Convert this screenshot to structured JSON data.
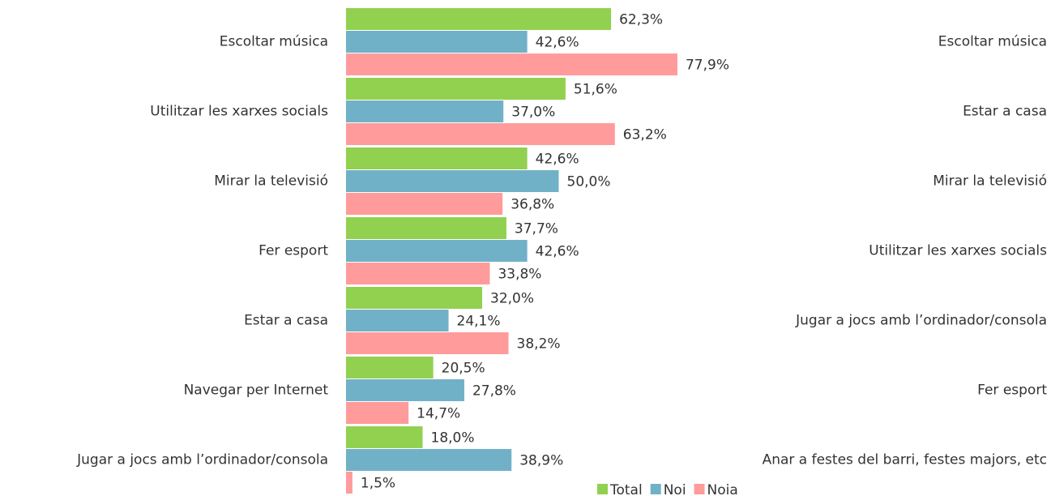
{
  "chart_data": {
    "type": "bar",
    "orientation": "horizontal",
    "categories": [
      "Escoltar música",
      "Utilitzar les xarxes socials",
      "Mirar la televisió",
      "Fer esport",
      "Estar a casa",
      "Navegar per Internet",
      "Jugar a jocs amb l’ordinador/consola"
    ],
    "right_categories": [
      "Escoltar música",
      "Estar a casa",
      "Mirar la televisió",
      "Utilitzar les xarxes socials",
      "Jugar a jocs amb l’ordinador/consola",
      "Fer esport",
      "Anar a festes del barri, festes majors, etc"
    ],
    "series": [
      {
        "name": "Total",
        "color": "#92d050",
        "values": [
          62.3,
          51.6,
          42.6,
          37.7,
          32.0,
          20.5,
          18.0
        ],
        "value_labels": [
          "62,3%",
          "51,6%",
          "42,6%",
          "37,7%",
          "32,0%",
          "20,5%",
          "18,0%"
        ]
      },
      {
        "name": "Noi",
        "color": "#71b1c8",
        "values": [
          42.6,
          37.0,
          50.0,
          42.6,
          24.1,
          27.8,
          38.9
        ],
        "value_labels": [
          "42,6%",
          "37,0%",
          "50,0%",
          "42,6%",
          "24,1%",
          "27,8%",
          "38,9%"
        ]
      },
      {
        "name": "Noia",
        "color": "#ff9b9b",
        "values": [
          77.9,
          63.2,
          36.8,
          33.8,
          38.2,
          14.7,
          1.5
        ],
        "value_labels": [
          "77,9%",
          "63,2%",
          "36,8%",
          "33,8%",
          "38,2%",
          "14,7%",
          "1,5%"
        ]
      }
    ],
    "xlim": [
      0,
      100
    ],
    "legend": "bottom"
  }
}
